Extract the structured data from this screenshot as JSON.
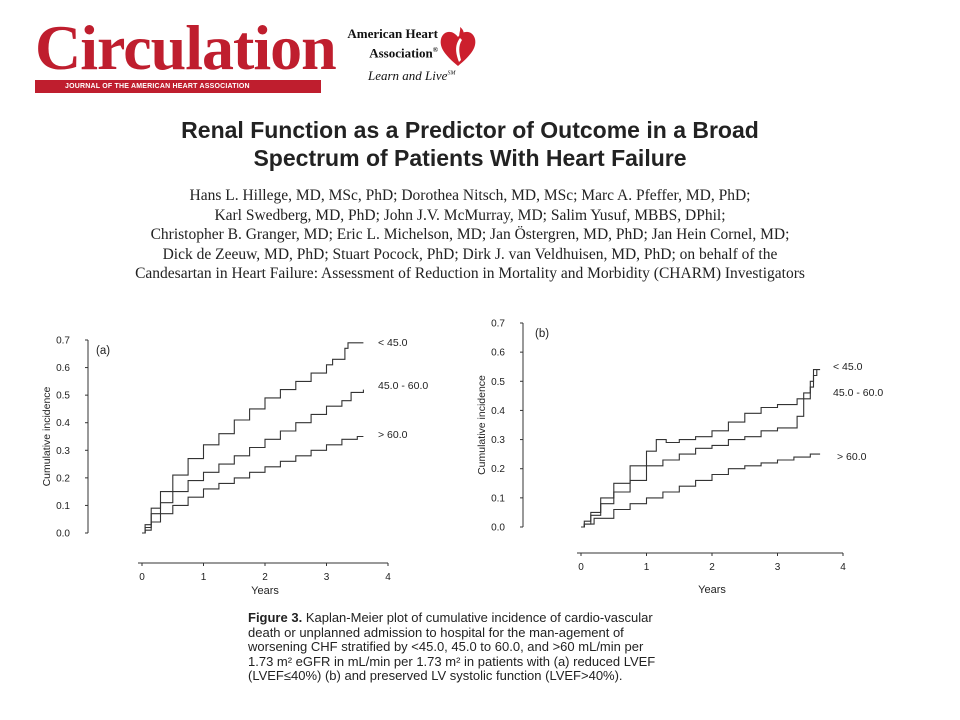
{
  "header": {
    "journal_name": "Circulation",
    "journal_subtitle": "JOURNAL OF THE AMERICAN HEART ASSOCIATION",
    "aha_name_line1": "American Heart",
    "aha_name_line2": "Association",
    "aha_registered": "®",
    "aha_tagline": "Learn and Live",
    "aha_tagline_tm": "SM"
  },
  "article": {
    "title_line1": "Renal Function as a Predictor of Outcome in a Broad",
    "title_line2": "Spectrum of Patients With Heart Failure",
    "authors_lines": [
      "Hans L. Hillege, MD, MSc, PhD; Dorothea Nitsch, MD, MSc; Marc A. Pfeffer, MD, PhD;",
      "Karl Swedberg, MD, PhD; John J.V. McMurray, MD; Salim Yusuf, MBBS, DPhil;",
      "Christopher B. Granger, MD; Eric L. Michelson, MD; Jan Östergren, MD, PhD; Jan Hein Cornel, MD;",
      "Dick de Zeeuw, MD, PhD; Stuart Pocock, PhD; Dirk J. van Veldhuisen, MD, PhD; on behalf of the",
      "Candesartan in Heart Failure: Assessment of Reduction in Mortality and Morbidity (CHARM) Investigators"
    ]
  },
  "figure": {
    "caption_label": "Figure 3.",
    "caption_text": "Kaplan-Meier plot of cumulative incidence of cardio-vascular death or unplanned admission to hospital for the man-agement of worsening CHF stratified by <45.0, 45.0 to 60.0, and >60 mL/min per 1.73 m² eGFR in mL/min per 1.73 m² in patients with (a) reduced LVEF (LVEF≤40%) (b) and preserved LV systolic function (LVEF>40%)."
  },
  "chart_data": [
    {
      "type": "line",
      "panel_label": "(a)",
      "xlabel": "Years",
      "ylabel": "Cumulative incidence",
      "xlim": [
        0,
        4
      ],
      "ylim": [
        0,
        0.7
      ],
      "x_ticks": [
        "0",
        "1",
        "2",
        "3",
        "4"
      ],
      "y_ticks": [
        "0.0",
        "0.1",
        "0.2",
        "0.3",
        "0.4",
        "0.5",
        "0.6",
        "0.7"
      ],
      "grid": false,
      "series": [
        {
          "name": "< 45.0",
          "points": [
            [
              0,
              0
            ],
            [
              0.05,
              0.03
            ],
            [
              0.15,
              0.09
            ],
            [
              0.3,
              0.15
            ],
            [
              0.5,
              0.21
            ],
            [
              0.75,
              0.27
            ],
            [
              1,
              0.32
            ],
            [
              1.25,
              0.36
            ],
            [
              1.5,
              0.41
            ],
            [
              1.75,
              0.45
            ],
            [
              2,
              0.49
            ],
            [
              2.25,
              0.52
            ],
            [
              2.5,
              0.55
            ],
            [
              2.75,
              0.58
            ],
            [
              3,
              0.61
            ],
            [
              3.1,
              0.63
            ],
            [
              3.25,
              0.63
            ],
            [
              3.3,
              0.67
            ],
            [
              3.35,
              0.69
            ],
            [
              3.6,
              0.69
            ]
          ]
        },
        {
          "name": "45.0 - 60.0",
          "points": [
            [
              0,
              0
            ],
            [
              0.05,
              0.02
            ],
            [
              0.15,
              0.07
            ],
            [
              0.3,
              0.11
            ],
            [
              0.5,
              0.15
            ],
            [
              0.75,
              0.19
            ],
            [
              1,
              0.22
            ],
            [
              1.25,
              0.25
            ],
            [
              1.5,
              0.28
            ],
            [
              1.75,
              0.31
            ],
            [
              2,
              0.34
            ],
            [
              2.25,
              0.37
            ],
            [
              2.5,
              0.4
            ],
            [
              2.75,
              0.43
            ],
            [
              3,
              0.46
            ],
            [
              3.25,
              0.48
            ],
            [
              3.4,
              0.51
            ],
            [
              3.6,
              0.52
            ]
          ]
        },
        {
          "name": "> 60.0",
          "points": [
            [
              0,
              0
            ],
            [
              0.05,
              0.01
            ],
            [
              0.15,
              0.04
            ],
            [
              0.3,
              0.07
            ],
            [
              0.5,
              0.1
            ],
            [
              0.75,
              0.13
            ],
            [
              1,
              0.16
            ],
            [
              1.25,
              0.18
            ],
            [
              1.5,
              0.2
            ],
            [
              1.75,
              0.22
            ],
            [
              2,
              0.24
            ],
            [
              2.25,
              0.26
            ],
            [
              2.5,
              0.28
            ],
            [
              2.75,
              0.3
            ],
            [
              3,
              0.32
            ],
            [
              3.25,
              0.34
            ],
            [
              3.5,
              0.35
            ],
            [
              3.6,
              0.35
            ]
          ]
        }
      ]
    },
    {
      "type": "line",
      "panel_label": "(b)",
      "xlabel": "Years",
      "ylabel": "Cumulative incidence",
      "xlim": [
        0,
        4
      ],
      "ylim": [
        0,
        0.7
      ],
      "x_ticks": [
        "0",
        "1",
        "2",
        "3",
        "4"
      ],
      "y_ticks": [
        "0.0",
        "0.1",
        "0.2",
        "0.3",
        "0.4",
        "0.5",
        "0.6",
        "0.7"
      ],
      "grid": false,
      "series": [
        {
          "name": "< 45.0",
          "points": [
            [
              0,
              0
            ],
            [
              0.05,
              0.02
            ],
            [
              0.15,
              0.05
            ],
            [
              0.3,
              0.1
            ],
            [
              0.5,
              0.15
            ],
            [
              0.75,
              0.21
            ],
            [
              1,
              0.26
            ],
            [
              1.15,
              0.3
            ],
            [
              1.3,
              0.29
            ],
            [
              1.5,
              0.3
            ],
            [
              1.75,
              0.31
            ],
            [
              2,
              0.33
            ],
            [
              2.25,
              0.36
            ],
            [
              2.5,
              0.39
            ],
            [
              2.75,
              0.41
            ],
            [
              3,
              0.42
            ],
            [
              3.25,
              0.42
            ],
            [
              3.3,
              0.44
            ],
            [
              3.4,
              0.46
            ],
            [
              3.5,
              0.5
            ],
            [
              3.55,
              0.54
            ],
            [
              3.65,
              0.54
            ]
          ]
        },
        {
          "name": "45.0 - 60.0",
          "points": [
            [
              0,
              0
            ],
            [
              0.05,
              0.01
            ],
            [
              0.15,
              0.04
            ],
            [
              0.3,
              0.08
            ],
            [
              0.5,
              0.12
            ],
            [
              0.75,
              0.16
            ],
            [
              1,
              0.21
            ],
            [
              1.25,
              0.23
            ],
            [
              1.5,
              0.25
            ],
            [
              1.75,
              0.27
            ],
            [
              2,
              0.28
            ],
            [
              2.25,
              0.3
            ],
            [
              2.5,
              0.31
            ],
            [
              2.75,
              0.33
            ],
            [
              3,
              0.34
            ],
            [
              3.25,
              0.34
            ],
            [
              3.3,
              0.38
            ],
            [
              3.4,
              0.44
            ],
            [
              3.5,
              0.48
            ],
            [
              3.55,
              0.52
            ],
            [
              3.6,
              0.54
            ]
          ]
        },
        {
          "name": "> 60.0",
          "points": [
            [
              0,
              0
            ],
            [
              0.05,
              0.01
            ],
            [
              0.2,
              0.03
            ],
            [
              0.5,
              0.06
            ],
            [
              0.75,
              0.08
            ],
            [
              1,
              0.1
            ],
            [
              1.25,
              0.12
            ],
            [
              1.5,
              0.14
            ],
            [
              1.75,
              0.16
            ],
            [
              2,
              0.18
            ],
            [
              2.25,
              0.2
            ],
            [
              2.5,
              0.21
            ],
            [
              2.75,
              0.22
            ],
            [
              3,
              0.23
            ],
            [
              3.25,
              0.24
            ],
            [
              3.5,
              0.25
            ],
            [
              3.65,
              0.25
            ]
          ]
        }
      ]
    }
  ]
}
